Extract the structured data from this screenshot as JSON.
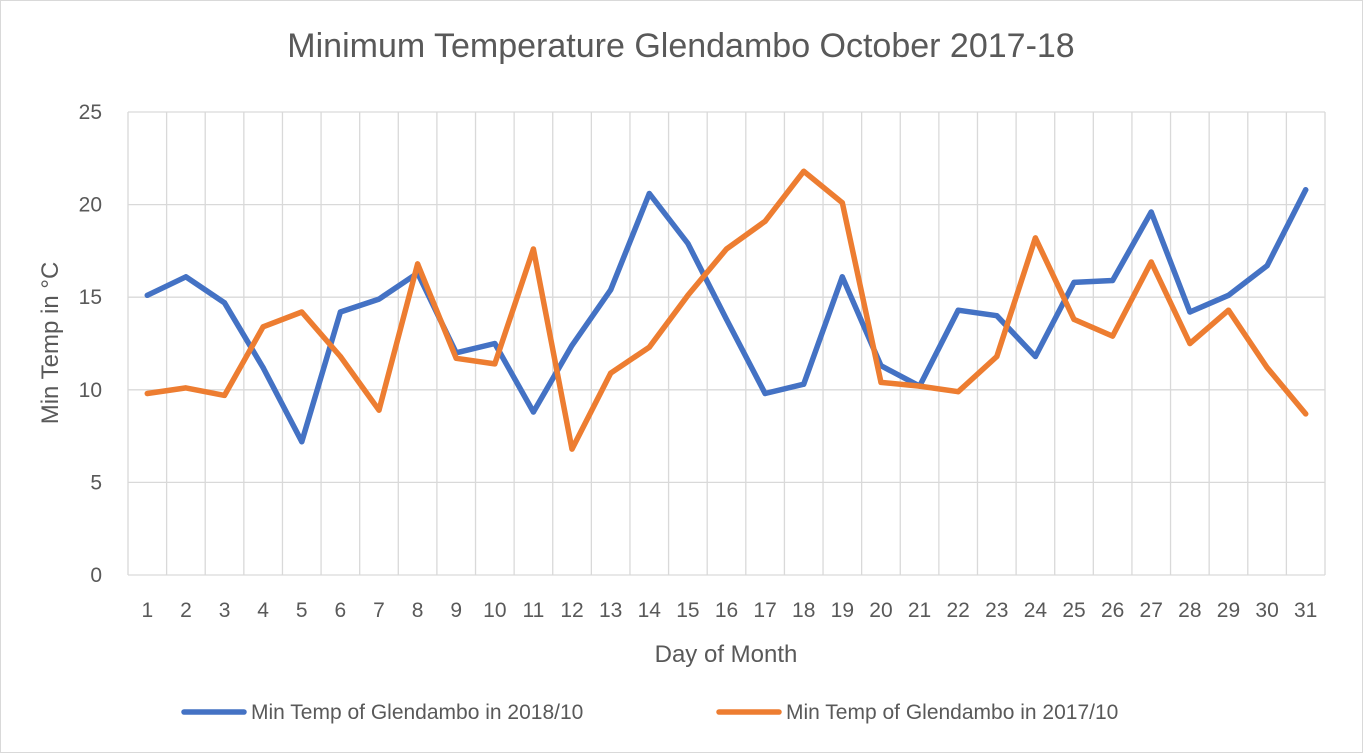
{
  "chart_data": {
    "type": "line",
    "title": "Minimum Temperature Glendambo October 2017-18",
    "xlabel": "Day of Month",
    "ylabel": "Min Temp in °C",
    "ylim": [
      0,
      25
    ],
    "yticks": [
      0,
      5,
      10,
      15,
      20,
      25
    ],
    "grid": true,
    "legend_position": "bottom",
    "categories": [
      "1",
      "2",
      "3",
      "4",
      "5",
      "6",
      "7",
      "8",
      "9",
      "10",
      "11",
      "12",
      "13",
      "14",
      "15",
      "16",
      "17",
      "18",
      "19",
      "20",
      "21",
      "22",
      "23",
      "24",
      "25",
      "26",
      "27",
      "28",
      "29",
      "30",
      "31"
    ],
    "series": [
      {
        "name": "Min Temp of Glendambo in 2018/10",
        "color": "#4472c4",
        "values": [
          15.1,
          16.1,
          14.7,
          11.2,
          7.2,
          14.2,
          14.9,
          16.3,
          12.0,
          12.5,
          8.8,
          12.4,
          15.4,
          20.6,
          17.9,
          13.8,
          9.8,
          10.3,
          16.1,
          11.3,
          10.2,
          14.3,
          14.0,
          11.8,
          15.8,
          15.9,
          19.6,
          14.2,
          15.1,
          16.7,
          20.8
        ]
      },
      {
        "name": "Min Temp of Glendambo in 2017/10",
        "color": "#ed7d31",
        "values": [
          9.8,
          10.1,
          9.7,
          13.4,
          14.2,
          11.8,
          8.9,
          16.8,
          11.7,
          11.4,
          17.6,
          6.8,
          10.9,
          12.3,
          15.1,
          17.6,
          19.1,
          21.8,
          20.1,
          10.4,
          10.2,
          9.9,
          11.8,
          18.2,
          13.8,
          12.9,
          16.9,
          12.5,
          14.3,
          11.2,
          8.7
        ]
      }
    ]
  }
}
